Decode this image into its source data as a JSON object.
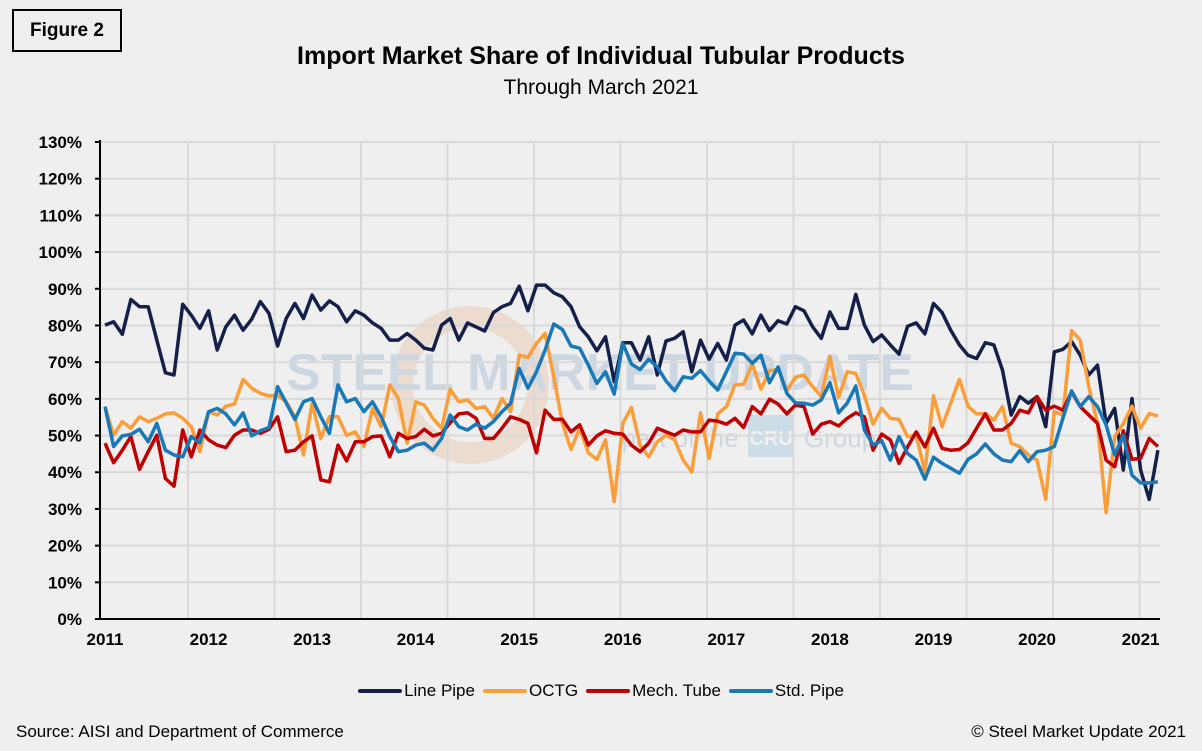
{
  "figure_label": "Figure 2",
  "watermark": {
    "line1": "STEEL MARKET UPDATE",
    "line2": "part of the",
    "badge": "CRU",
    "line3": "Group"
  },
  "source": "Source: AISI and Department of Commerce",
  "copyright": "© Steel Market Update 2021",
  "chart_data": {
    "type": "line",
    "title": "Import Market Share of Individual Tubular Products",
    "subtitle": "Through March 2021",
    "xlabel": "",
    "ylabel": "",
    "ylim": [
      0,
      130
    ],
    "y_ticks": [
      "0%",
      "10%",
      "20%",
      "30%",
      "40%",
      "50%",
      "60%",
      "70%",
      "80%",
      "90%",
      "100%",
      "110%",
      "120%",
      "130%"
    ],
    "x_ticks": [
      "2011",
      "2012",
      "2013",
      "2014",
      "2015",
      "2016",
      "2017",
      "2018",
      "2019",
      "2020",
      "2021"
    ],
    "grid": true,
    "legend_position": "bottom",
    "x": [
      "2011-01",
      "2011-02",
      "2011-03",
      "2011-04",
      "2011-05",
      "2011-06",
      "2011-07",
      "2011-08",
      "2011-09",
      "2011-10",
      "2011-11",
      "2011-12",
      "2012-01",
      "2012-02",
      "2012-03",
      "2012-04",
      "2012-05",
      "2012-06",
      "2012-07",
      "2012-08",
      "2012-09",
      "2012-10",
      "2012-11",
      "2012-12",
      "2013-01",
      "2013-02",
      "2013-03",
      "2013-04",
      "2013-05",
      "2013-06",
      "2013-07",
      "2013-08",
      "2013-09",
      "2013-10",
      "2013-11",
      "2013-12",
      "2014-01",
      "2014-02",
      "2014-03",
      "2014-04",
      "2014-05",
      "2014-06",
      "2014-07",
      "2014-08",
      "2014-09",
      "2014-10",
      "2014-11",
      "2014-12",
      "2015-01",
      "2015-02",
      "2015-03",
      "2015-04",
      "2015-05",
      "2015-06",
      "2015-07",
      "2015-08",
      "2015-09",
      "2015-10",
      "2015-11",
      "2015-12",
      "2016-01",
      "2016-02",
      "2016-03",
      "2016-04",
      "2016-05",
      "2016-06",
      "2016-07",
      "2016-08",
      "2016-09",
      "2016-10",
      "2016-11",
      "2016-12",
      "2017-01",
      "2017-02",
      "2017-03",
      "2017-04",
      "2017-05",
      "2017-06",
      "2017-07",
      "2017-08",
      "2017-09",
      "2017-10",
      "2017-11",
      "2017-12",
      "2018-01",
      "2018-02",
      "2018-03",
      "2018-04",
      "2018-05",
      "2018-06",
      "2018-07",
      "2018-08",
      "2018-09",
      "2018-10",
      "2018-11",
      "2018-12",
      "2019-01",
      "2019-02",
      "2019-03",
      "2019-04",
      "2019-05",
      "2019-06",
      "2019-07",
      "2019-08",
      "2019-09",
      "2019-10",
      "2019-11",
      "2019-12",
      "2020-01",
      "2020-02",
      "2020-03",
      "2020-04",
      "2020-05",
      "2020-06",
      "2020-07",
      "2020-08",
      "2020-09",
      "2020-10",
      "2020-11",
      "2020-12",
      "2021-01",
      "2021-02",
      "2021-03"
    ],
    "series": [
      {
        "name": "Line Pipe",
        "color": "#14204a",
        "values": [
          80.1,
          81.0,
          77.6,
          87.1,
          85.1,
          85.1,
          76.0,
          67.1,
          66.5,
          85.8,
          82.8,
          79.2,
          84.0,
          73.3,
          79.6,
          82.8,
          78.7,
          81.7,
          86.5,
          83.3,
          74.4,
          81.9,
          86.0,
          81.9,
          88.3,
          84.2,
          86.7,
          85.1,
          81.0,
          84.0,
          82.8,
          80.7,
          79.2,
          76.0,
          76.0,
          77.8,
          76.0,
          73.8,
          73.3,
          80.1,
          81.9,
          76.0,
          80.7,
          79.6,
          78.5,
          83.5,
          85.1,
          86.0,
          90.7,
          84.0,
          91.0,
          91.0,
          88.9,
          87.8,
          85.1,
          79.6,
          76.9,
          73.1,
          76.9,
          64.7,
          75.3,
          75.3,
          70.6,
          76.9,
          66.5,
          75.8,
          76.5,
          78.3,
          67.4,
          76.0,
          70.8,
          75.1,
          70.6,
          80.1,
          81.5,
          77.7,
          82.8,
          78.6,
          81.3,
          80.4,
          85.1,
          84.0,
          79.6,
          76.5,
          83.7,
          79.2,
          79.2,
          88.5,
          80.1,
          75.6,
          77.4,
          74.7,
          72.2,
          79.8,
          80.7,
          77.7,
          86.0,
          83.5,
          78.7,
          74.7,
          71.9,
          71.0,
          75.3,
          74.7,
          67.8,
          55.6,
          60.6,
          58.8,
          60.6,
          52.4,
          72.8,
          73.5,
          75.6,
          71.9,
          66.5,
          69.2,
          53.3,
          57.4,
          40.6,
          60.1,
          40.6,
          32.6,
          46.0
        ]
      },
      {
        "name": "OCTG",
        "color": "#fb9e3a",
        "values": [
          57.9,
          50.1,
          53.8,
          52.0,
          55.1,
          53.8,
          54.7,
          55.9,
          56.2,
          54.7,
          52.4,
          45.6,
          56.5,
          55.6,
          58.0,
          58.6,
          65.3,
          62.9,
          61.5,
          60.8,
          61.0,
          59.2,
          55.1,
          44.7,
          58.8,
          49.2,
          55.1,
          55.1,
          50.1,
          51.0,
          47.0,
          57.4,
          52.4,
          63.8,
          60.1,
          47.9,
          59.2,
          58.3,
          54.7,
          52.0,
          62.6,
          59.2,
          59.7,
          57.4,
          57.9,
          54.7,
          60.1,
          56.5,
          71.9,
          71.3,
          75.1,
          77.8,
          66.0,
          53.3,
          46.2,
          52.0,
          45.3,
          43.5,
          48.8,
          32.0,
          53.3,
          57.7,
          47.4,
          44.2,
          48.3,
          50.1,
          48.8,
          43.3,
          40.1,
          56.2,
          43.8,
          55.9,
          57.9,
          63.8,
          64.0,
          69.5,
          62.6,
          67.7,
          68.0,
          62.2,
          65.9,
          66.5,
          63.3,
          60.6,
          71.5,
          60.4,
          67.4,
          66.9,
          61.0,
          53.1,
          57.4,
          54.7,
          54.4,
          49.7,
          50.1,
          40.1,
          60.8,
          52.4,
          58.8,
          65.3,
          58.0,
          55.9,
          56.0,
          54.2,
          57.9,
          47.9,
          47.0,
          44.7,
          43.3,
          32.6,
          56.5,
          55.6,
          78.6,
          76.0,
          63.3,
          53.3,
          29.0,
          49.7,
          53.3,
          58.0,
          52.0,
          56.0,
          55.3
        ]
      },
      {
        "name": "Mech. Tube",
        "color": "#c00000",
        "values": [
          47.9,
          42.6,
          46.0,
          49.7,
          40.8,
          45.6,
          50.1,
          38.3,
          36.2,
          51.5,
          44.2,
          51.5,
          48.8,
          47.4,
          46.7,
          50.1,
          51.5,
          51.5,
          50.6,
          51.7,
          55.1,
          45.6,
          46.0,
          48.3,
          49.9,
          37.9,
          37.4,
          47.4,
          43.1,
          48.3,
          48.3,
          49.7,
          49.9,
          44.2,
          50.6,
          49.2,
          49.7,
          51.7,
          49.9,
          50.6,
          53.5,
          55.9,
          56.2,
          54.7,
          49.2,
          49.2,
          52.0,
          55.1,
          54.4,
          53.3,
          45.3,
          56.9,
          54.4,
          54.4,
          51.0,
          52.9,
          47.4,
          49.9,
          51.3,
          50.6,
          50.4,
          47.4,
          45.6,
          47.9,
          52.0,
          51.0,
          50.1,
          51.5,
          51.0,
          51.0,
          54.2,
          53.9,
          53.1,
          54.7,
          52.2,
          57.9,
          55.9,
          59.9,
          58.6,
          55.9,
          58.3,
          57.9,
          50.4,
          53.1,
          53.8,
          52.6,
          54.7,
          56.2,
          55.1,
          46.0,
          50.4,
          48.8,
          42.4,
          46.9,
          51.0,
          46.9,
          52.0,
          46.5,
          46.0,
          46.2,
          48.0,
          52.0,
          55.9,
          51.5,
          51.5,
          53.3,
          56.9,
          56.2,
          60.6,
          56.9,
          58.0,
          56.9,
          61.9,
          57.9,
          55.6,
          53.3,
          43.3,
          41.5,
          51.3,
          43.5,
          43.8,
          49.2,
          47.0
        ]
      },
      {
        "name": "Std. Pipe",
        "color": "#1878b8",
        "values": [
          57.9,
          47.0,
          49.9,
          50.3,
          51.7,
          48.3,
          53.3,
          46.0,
          44.7,
          44.2,
          49.7,
          48.0,
          56.5,
          57.4,
          55.9,
          52.9,
          56.2,
          49.9,
          51.3,
          52.2,
          63.3,
          58.9,
          54.4,
          59.2,
          60.1,
          55.1,
          50.6,
          63.8,
          59.2,
          60.1,
          56.5,
          59.2,
          55.1,
          49.7,
          45.6,
          46.0,
          47.4,
          47.9,
          46.0,
          49.2,
          55.6,
          52.4,
          51.5,
          53.1,
          52.0,
          53.8,
          56.5,
          58.8,
          68.3,
          62.9,
          67.4,
          73.3,
          80.4,
          78.9,
          74.4,
          73.8,
          69.2,
          64.2,
          67.4,
          61.3,
          75.1,
          69.5,
          68.0,
          70.8,
          68.7,
          64.9,
          62.2,
          66.0,
          65.6,
          67.7,
          64.9,
          62.4,
          67.4,
          72.4,
          72.2,
          69.7,
          71.9,
          64.4,
          68.7,
          61.5,
          58.9,
          58.8,
          58.3,
          59.7,
          64.4,
          56.2,
          58.8,
          63.5,
          51.5,
          47.4,
          48.6,
          43.3,
          49.7,
          45.1,
          43.3,
          38.1,
          44.1,
          42.4,
          41.1,
          39.7,
          43.5,
          45.0,
          47.7,
          45.0,
          43.3,
          42.9,
          45.9,
          42.9,
          45.6,
          46.0,
          47.0,
          54.7,
          62.2,
          57.9,
          60.6,
          57.9,
          52.9,
          44.7,
          50.1,
          39.2,
          37.1,
          37.1,
          37.4
        ]
      }
    ]
  }
}
